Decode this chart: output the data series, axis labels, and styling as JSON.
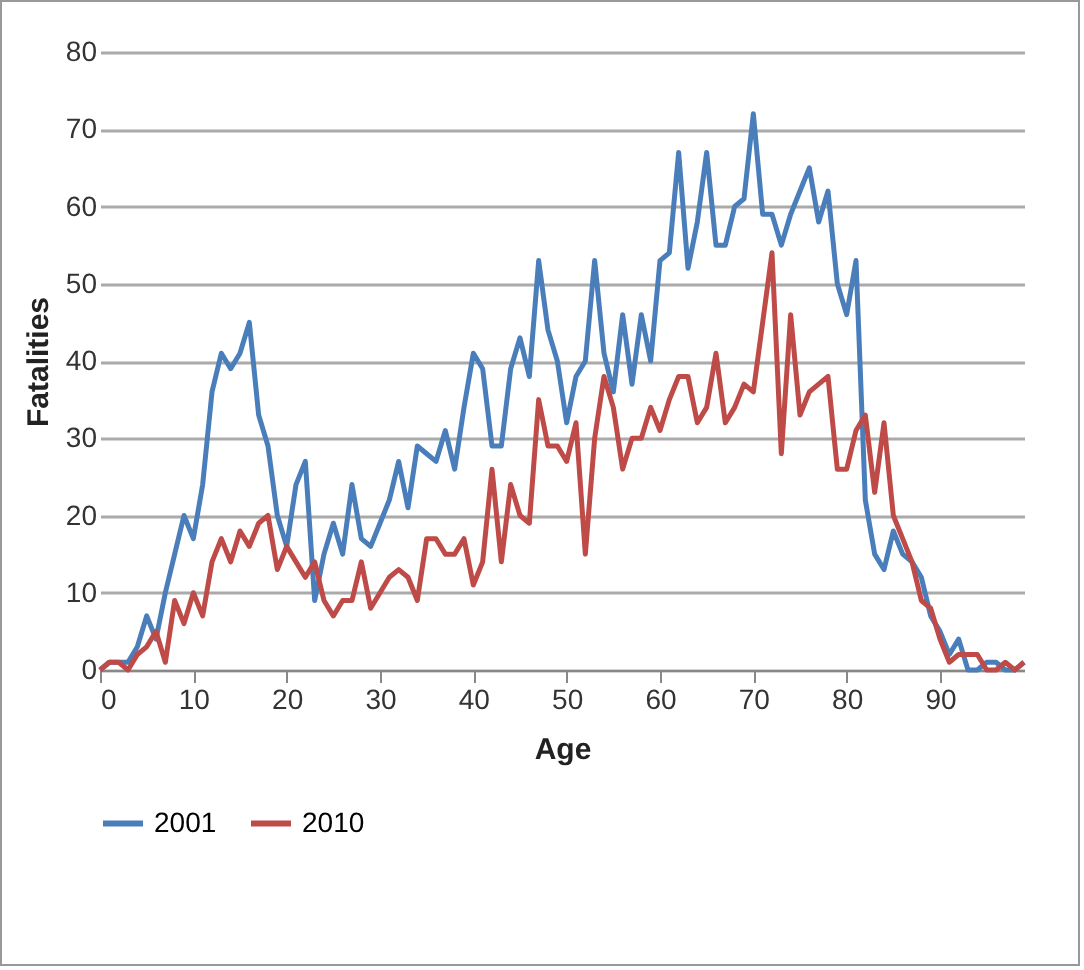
{
  "chart_data": {
    "type": "line",
    "xlabel": "Age",
    "ylabel": "Fatalities",
    "x": [
      0,
      1,
      2,
      3,
      4,
      5,
      6,
      7,
      8,
      9,
      10,
      11,
      12,
      13,
      14,
      15,
      16,
      17,
      18,
      19,
      20,
      21,
      22,
      23,
      24,
      25,
      26,
      27,
      28,
      29,
      30,
      31,
      32,
      33,
      34,
      35,
      36,
      37,
      38,
      39,
      40,
      41,
      42,
      43,
      44,
      45,
      46,
      47,
      48,
      49,
      50,
      51,
      52,
      53,
      54,
      55,
      56,
      57,
      58,
      59,
      60,
      61,
      62,
      63,
      64,
      65,
      66,
      67,
      68,
      69,
      70,
      71,
      72,
      73,
      74,
      75,
      76,
      77,
      78,
      79,
      80,
      81,
      82,
      83,
      84,
      85,
      86,
      87,
      88,
      89,
      90,
      91,
      92,
      93,
      94,
      95,
      96,
      97,
      98,
      99
    ],
    "series": [
      {
        "name": "2001",
        "color": "#4a7ebb",
        "values": [
          0,
          1,
          1,
          1,
          3,
          7,
          4,
          10,
          15,
          20,
          17,
          24,
          36,
          41,
          39,
          41,
          45,
          33,
          29,
          20,
          16,
          24,
          27,
          9,
          15,
          19,
          15,
          24,
          17,
          16,
          19,
          22,
          27,
          21,
          29,
          28,
          27,
          31,
          26,
          34,
          41,
          39,
          29,
          29,
          39,
          43,
          38,
          53,
          44,
          40,
          32,
          38,
          40,
          53,
          41,
          36,
          46,
          37,
          46,
          40,
          53,
          54,
          67,
          52,
          58,
          67,
          55,
          55,
          60,
          61,
          72,
          59,
          59,
          55,
          59,
          62,
          65,
          58,
          62,
          50,
          46,
          53,
          22,
          15,
          13,
          18,
          15,
          14,
          12,
          7,
          5,
          2,
          4,
          0,
          0,
          1,
          1,
          0,
          0,
          1
        ]
      },
      {
        "name": "2010",
        "color": "#be4b48",
        "values": [
          0,
          1,
          1,
          0,
          2,
          3,
          5,
          1,
          9,
          6,
          10,
          7,
          14,
          17,
          14,
          18,
          16,
          19,
          20,
          13,
          16,
          14,
          12,
          14,
          9,
          7,
          9,
          9,
          14,
          8,
          10,
          12,
          13,
          12,
          9,
          17,
          17,
          15,
          15,
          17,
          11,
          14,
          26,
          14,
          24,
          20,
          19,
          35,
          29,
          29,
          27,
          32,
          15,
          30,
          38,
          34,
          26,
          30,
          30,
          34,
          31,
          35,
          38,
          38,
          32,
          34,
          41,
          32,
          34,
          37,
          36,
          45,
          54,
          28,
          46,
          33,
          36,
          37,
          38,
          26,
          26,
          31,
          33,
          23,
          32,
          20,
          17,
          14,
          9,
          8,
          4,
          1,
          2,
          2,
          2,
          0,
          0,
          1,
          0,
          1
        ]
      }
    ],
    "xlim": [
      0,
      99
    ],
    "xticks": [
      0,
      10,
      20,
      30,
      40,
      50,
      60,
      70,
      80,
      90
    ],
    "ylim": [
      0,
      80
    ],
    "yticks": [
      0,
      10,
      20,
      30,
      40,
      50,
      60,
      70,
      80
    ],
    "grid": "y",
    "legend": "bottom",
    "marker": "none",
    "line_style": "solid"
  }
}
